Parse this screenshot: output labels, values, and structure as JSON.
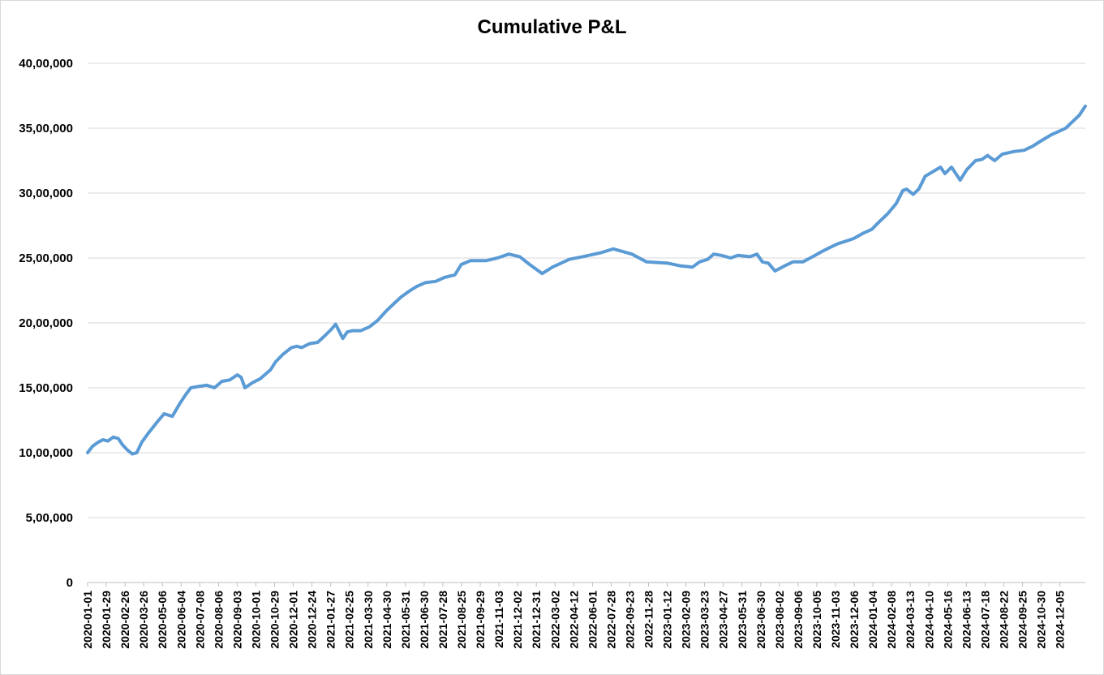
{
  "chart_data": {
    "type": "line",
    "title": "Cumulative P&L",
    "xlabel": "",
    "ylabel": "",
    "ylim": [
      0,
      4000000
    ],
    "y_ticks": [
      0,
      500000,
      1000000,
      1500000,
      2000000,
      2500000,
      3000000,
      3500000,
      4000000
    ],
    "y_tick_labels": [
      "0",
      "5,00,000",
      "10,00,000",
      "15,00,000",
      "20,00,000",
      "25,00,000",
      "30,00,000",
      "35,00,000",
      "40,00,000"
    ],
    "x_range": [
      "2020-01-01",
      "2024-12-31"
    ],
    "x_tick_labels": [
      "2020-01-01",
      "2020-01-29",
      "2020-02-26",
      "2020-03-26",
      "2020-05-06",
      "2020-06-04",
      "2020-07-08",
      "2020-08-06",
      "2020-09-03",
      "2020-10-01",
      "2020-10-29",
      "2020-12-01",
      "2020-12-24",
      "2021-01-27",
      "2021-02-25",
      "2021-03-30",
      "2021-04-30",
      "2021-05-31",
      "2021-06-30",
      "2021-07-28",
      "2021-08-25",
      "2021-09-29",
      "2021-11-03",
      "2021-12-02",
      "2021-12-31",
      "2022-03-02",
      "2022-04-12",
      "2022-06-01",
      "2022-07-28",
      "2022-09-23",
      "2022-11-28",
      "2023-01-12",
      "2023-02-09",
      "2023-03-23",
      "2023-04-27",
      "2023-05-31",
      "2023-06-30",
      "2023-08-02",
      "2023-09-06",
      "2023-10-05",
      "2023-11-03",
      "2023-12-06",
      "2024-01-04",
      "2024-02-08",
      "2024-03-13",
      "2024-04-10",
      "2024-05-16",
      "2024-06-13",
      "2024-07-18",
      "2024-08-22",
      "2024-09-25",
      "2024-10-30",
      "2024-12-05"
    ],
    "grid": true,
    "legend": "none",
    "line_color": "#5b9bd5",
    "series": [
      {
        "name": "",
        "points": [
          [
            "2020-01-01",
            1000000
          ],
          [
            "2020-01-10",
            1050000
          ],
          [
            "2020-01-20",
            1080000
          ],
          [
            "2020-01-29",
            1100000
          ],
          [
            "2020-02-07",
            1090000
          ],
          [
            "2020-02-17",
            1120000
          ],
          [
            "2020-02-26",
            1110000
          ],
          [
            "2020-03-05",
            1060000
          ],
          [
            "2020-03-14",
            1020000
          ],
          [
            "2020-03-23",
            990000
          ],
          [
            "2020-03-31",
            1000000
          ],
          [
            "2020-04-09",
            1080000
          ],
          [
            "2020-04-21",
            1150000
          ],
          [
            "2020-05-06",
            1230000
          ],
          [
            "2020-05-20",
            1300000
          ],
          [
            "2020-06-04",
            1280000
          ],
          [
            "2020-06-18",
            1380000
          ],
          [
            "2020-06-29",
            1450000
          ],
          [
            "2020-07-08",
            1500000
          ],
          [
            "2020-07-22",
            1510000
          ],
          [
            "2020-08-06",
            1520000
          ],
          [
            "2020-08-20",
            1500000
          ],
          [
            "2020-09-03",
            1550000
          ],
          [
            "2020-09-17",
            1560000
          ],
          [
            "2020-10-01",
            1600000
          ],
          [
            "2020-10-08",
            1580000
          ],
          [
            "2020-10-15",
            1500000
          ],
          [
            "2020-10-29",
            1540000
          ],
          [
            "2020-11-12",
            1570000
          ],
          [
            "2020-12-01",
            1640000
          ],
          [
            "2020-12-10",
            1700000
          ],
          [
            "2020-12-24",
            1760000
          ],
          [
            "2021-01-08",
            1810000
          ],
          [
            "2021-01-18",
            1820000
          ],
          [
            "2021-01-27",
            1810000
          ],
          [
            "2021-02-10",
            1840000
          ],
          [
            "2021-02-25",
            1850000
          ],
          [
            "2021-03-10",
            1900000
          ],
          [
            "2021-03-22",
            1950000
          ],
          [
            "2021-03-30",
            1990000
          ],
          [
            "2021-04-12",
            1880000
          ],
          [
            "2021-04-20",
            1930000
          ],
          [
            "2021-04-30",
            1940000
          ],
          [
            "2021-05-15",
            1940000
          ],
          [
            "2021-05-31",
            1970000
          ],
          [
            "2021-06-15",
            2020000
          ],
          [
            "2021-06-30",
            2090000
          ],
          [
            "2021-07-15",
            2150000
          ],
          [
            "2021-07-28",
            2200000
          ],
          [
            "2021-08-10",
            2240000
          ],
          [
            "2021-08-25",
            2280000
          ],
          [
            "2021-09-10",
            2310000
          ],
          [
            "2021-09-29",
            2320000
          ],
          [
            "2021-10-15",
            2350000
          ],
          [
            "2021-11-03",
            2370000
          ],
          [
            "2021-11-15",
            2450000
          ],
          [
            "2021-12-02",
            2480000
          ],
          [
            "2021-12-15",
            2480000
          ],
          [
            "2021-12-31",
            2480000
          ],
          [
            "2022-01-20",
            2500000
          ],
          [
            "2022-02-10",
            2530000
          ],
          [
            "2022-03-02",
            2510000
          ],
          [
            "2022-03-20",
            2450000
          ],
          [
            "2022-04-12",
            2380000
          ],
          [
            "2022-05-01",
            2430000
          ],
          [
            "2022-06-01",
            2490000
          ],
          [
            "2022-06-25",
            2510000
          ],
          [
            "2022-07-28",
            2540000
          ],
          [
            "2022-08-20",
            2570000
          ],
          [
            "2022-09-23",
            2530000
          ],
          [
            "2022-10-20",
            2470000
          ],
          [
            "2022-11-28",
            2460000
          ],
          [
            "2022-12-20",
            2440000
          ],
          [
            "2023-01-12",
            2430000
          ],
          [
            "2023-01-25",
            2470000
          ],
          [
            "2023-02-09",
            2490000
          ],
          [
            "2023-02-20",
            2530000
          ],
          [
            "2023-03-06",
            2520000
          ],
          [
            "2023-03-23",
            2500000
          ],
          [
            "2023-04-05",
            2520000
          ],
          [
            "2023-04-27",
            2510000
          ],
          [
            "2023-05-10",
            2530000
          ],
          [
            "2023-05-20",
            2470000
          ],
          [
            "2023-05-31",
            2460000
          ],
          [
            "2023-06-12",
            2400000
          ],
          [
            "2023-06-30",
            2440000
          ],
          [
            "2023-07-15",
            2470000
          ],
          [
            "2023-08-02",
            2470000
          ],
          [
            "2023-08-20",
            2510000
          ],
          [
            "2023-09-06",
            2550000
          ],
          [
            "2023-09-20",
            2580000
          ],
          [
            "2023-10-05",
            2610000
          ],
          [
            "2023-10-20",
            2630000
          ],
          [
            "2023-11-03",
            2650000
          ],
          [
            "2023-11-20",
            2690000
          ],
          [
            "2023-12-06",
            2720000
          ],
          [
            "2023-12-20",
            2780000
          ],
          [
            "2024-01-04",
            2840000
          ],
          [
            "2024-01-20",
            2920000
          ],
          [
            "2024-02-01",
            3020000
          ],
          [
            "2024-02-08",
            3030000
          ],
          [
            "2024-02-20",
            2990000
          ],
          [
            "2024-03-01",
            3030000
          ],
          [
            "2024-03-13",
            3130000
          ],
          [
            "2024-03-25",
            3160000
          ],
          [
            "2024-04-10",
            3200000
          ],
          [
            "2024-04-18",
            3150000
          ],
          [
            "2024-04-30",
            3200000
          ],
          [
            "2024-05-16",
            3100000
          ],
          [
            "2024-05-28",
            3180000
          ],
          [
            "2024-06-13",
            3250000
          ],
          [
            "2024-06-25",
            3260000
          ],
          [
            "2024-07-05",
            3290000
          ],
          [
            "2024-07-18",
            3250000
          ],
          [
            "2024-08-01",
            3300000
          ],
          [
            "2024-08-22",
            3320000
          ],
          [
            "2024-09-10",
            3330000
          ],
          [
            "2024-09-25",
            3360000
          ],
          [
            "2024-10-10",
            3400000
          ],
          [
            "2024-10-30",
            3450000
          ],
          [
            "2024-11-15",
            3480000
          ],
          [
            "2024-11-25",
            3500000
          ],
          [
            "2024-12-05",
            3540000
          ],
          [
            "2024-12-20",
            3600000
          ],
          [
            "2024-12-31",
            3670000
          ]
        ]
      }
    ]
  }
}
